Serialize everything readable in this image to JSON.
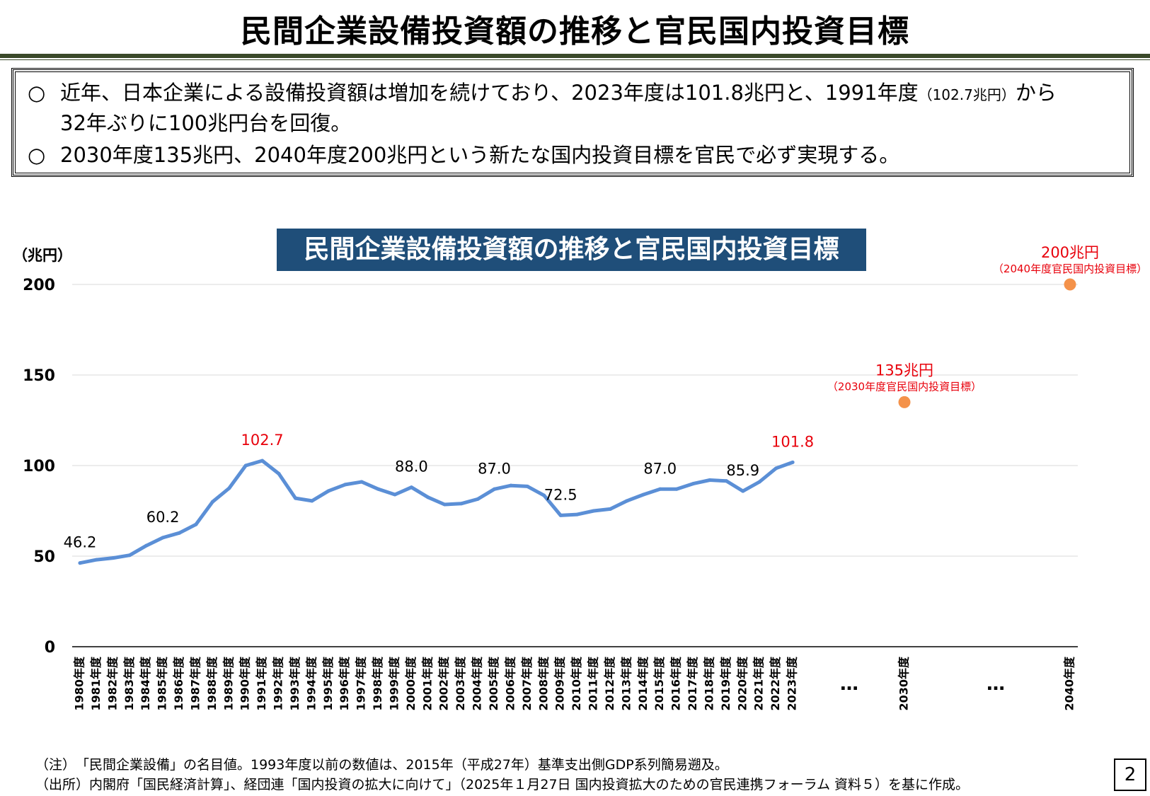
{
  "page": {
    "title": "民間企業設備投資額の推移と官民国内投資目標",
    "page_number": "2"
  },
  "summary": {
    "bullet_mark": "○",
    "bullet1_main": "近年、日本企業による設備投資額は増加を続けており、2023年度は101.8兆円と、1991年度",
    "bullet1_small": "（102.7兆円）",
    "bullet1_end": "から",
    "bullet1_line2": "32年ぶりに100兆円台を回復。",
    "bullet2": "2030年度135兆円、2040年度200兆円という新たな国内投資目標を官民で必ず実現する。"
  },
  "footnotes": {
    "note": "（注）　「民間企業設備」の名目値。1993年度以前の数値は、2015年（平成27年）基準支出側GDP系列簡易遡及。",
    "source": "（出所）内閣府「国民経済計算」、経団連「国内投資の拡大に向けて」（2025年１月27日 国内投資拡大のための官民連携フォーラム 資料５）を基に作成。"
  },
  "colors": {
    "line": "#5b8fd6",
    "target": "#f4924a",
    "highlight_label": "#e8000b",
    "title_bg": "#1f4e79"
  },
  "chart_data": {
    "type": "line",
    "title": "民間企業設備投資額の推移と官民国内投資目標",
    "ylabel": "（兆円）",
    "ylim": [
      0,
      200
    ],
    "yticks": [
      0,
      50,
      100,
      150,
      200
    ],
    "grid": true,
    "categories": [
      "1980年度",
      "1981年度",
      "1982年度",
      "1983年度",
      "1984年度",
      "1985年度",
      "1986年度",
      "1987年度",
      "1988年度",
      "1989年度",
      "1990年度",
      "1991年度",
      "1992年度",
      "1993年度",
      "1994年度",
      "1995年度",
      "1996年度",
      "1997年度",
      "1998年度",
      "1999年度",
      "2000年度",
      "2001年度",
      "2002年度",
      "2003年度",
      "2004年度",
      "2005年度",
      "2006年度",
      "2007年度",
      "2008年度",
      "2009年度",
      "2010年度",
      "2011年度",
      "2012年度",
      "2013年度",
      "2014年度",
      "2015年度",
      "2016年度",
      "2017年度",
      "2018年度",
      "2019年度",
      "2020年度",
      "2021年度",
      "2022年度",
      "2023年度"
    ],
    "series": [
      {
        "values": [
          46.2,
          48.0,
          49.0,
          50.5,
          55.8,
          60.2,
          62.8,
          67.5,
          80.0,
          87.5,
          100.0,
          102.7,
          95.5,
          82.0,
          80.5,
          86.0,
          89.5,
          91.0,
          87.0,
          84.0,
          88.0,
          82.5,
          78.5,
          79.0,
          81.5,
          87.0,
          89.0,
          88.5,
          83.5,
          72.5,
          73.0,
          75.0,
          76.0,
          80.5,
          84.0,
          87.0,
          87.0,
          90.0,
          92.0,
          91.5,
          85.9,
          91.0,
          98.5,
          101.8
        ]
      }
    ],
    "data_labels": [
      {
        "category": "1980年度",
        "text": "46.2",
        "highlight": false
      },
      {
        "category": "1985年度",
        "text": "60.2",
        "highlight": false
      },
      {
        "category": "1991年度",
        "text": "102.7",
        "highlight": true
      },
      {
        "category": "2000年度",
        "text": "88.0",
        "highlight": false
      },
      {
        "category": "2005年度",
        "text": "87.0",
        "highlight": false
      },
      {
        "category": "2009年度",
        "text": "72.5",
        "highlight": false
      },
      {
        "category": "2015年度",
        "text": "87.0",
        "highlight": false
      },
      {
        "category": "2020年度",
        "text": "85.9",
        "highlight": false
      },
      {
        "category": "2023年度",
        "text": "101.8",
        "highlight": true
      }
    ],
    "gap_marker": "…",
    "targets": [
      {
        "x": "2030年度",
        "value": 135,
        "label": "135兆円",
        "sublabel": "（2030年度官民国内投資目標）"
      },
      {
        "x": "2040年度",
        "value": 200,
        "label": "200兆円",
        "sublabel": "（2040年度官民国内投資目標）"
      }
    ]
  }
}
